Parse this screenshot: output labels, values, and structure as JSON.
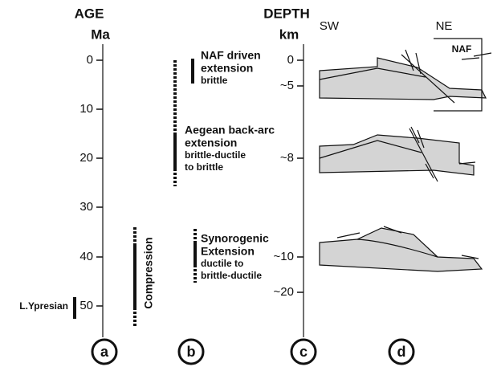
{
  "age_axis": {
    "title": "AGE",
    "unit": "Ma",
    "ticks": [
      "0",
      "10",
      "20",
      "30",
      "40",
      "50"
    ]
  },
  "depth_axis": {
    "title": "DEPTH",
    "unit": "km",
    "ticks": [
      "0",
      "~5",
      "~8",
      "~10",
      "~20"
    ]
  },
  "orientation": {
    "left": "SW",
    "right": "NE"
  },
  "events": [
    {
      "title": [
        "NAF driven",
        "extension"
      ],
      "detail": [
        "brittle"
      ]
    },
    {
      "title": [
        "Aegean back-arc",
        "extension"
      ],
      "detail": [
        "brittle-ductile",
        "to brittle"
      ]
    },
    {
      "title": [
        "Synorogenic",
        "Extension"
      ],
      "detail": [
        "ductile to",
        "brittle-ductile"
      ]
    }
  ],
  "compression": "Compression",
  "stage": "L.Ypresian",
  "fault_label": "NAF",
  "panels": [
    "a",
    "b",
    "c",
    "d"
  ]
}
